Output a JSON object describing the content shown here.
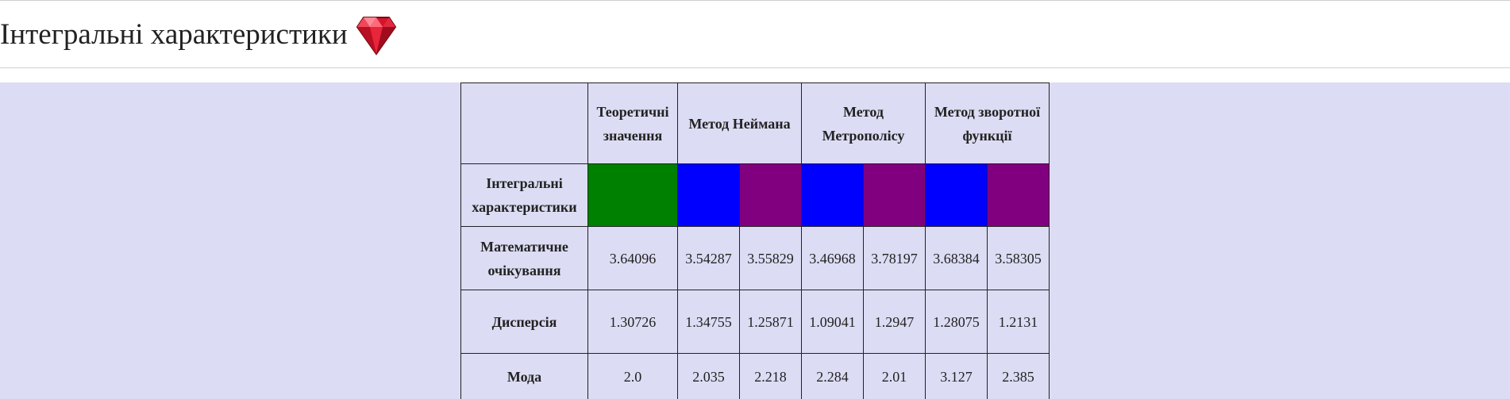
{
  "page": {
    "title": "Інтегральні характеристики",
    "title_icon": "gem-icon"
  },
  "table": {
    "headers": {
      "corner": "",
      "theoretical": "Теоретичні значення",
      "neumann": "Метод Неймана",
      "metropolis": "Метод Метрополісу",
      "inverse": "Метод зворотної функції"
    },
    "color_row": {
      "label": "Інтегральні характеристики",
      "colors": [
        "#008000",
        "#0000ff",
        "#800080",
        "#0000ff",
        "#800080",
        "#0000ff",
        "#800080"
      ]
    },
    "rows": [
      {
        "label": "Математичне очікування",
        "values": [
          "3.64096",
          "3.54287",
          "3.55829",
          "3.46968",
          "3.78197",
          "3.68384",
          "3.58305"
        ]
      },
      {
        "label": "Дисперсія",
        "values": [
          "1.30726",
          "1.34755",
          "1.25871",
          "1.09041",
          "1.2947",
          "1.28075",
          "1.2131"
        ]
      },
      {
        "label": "Мода",
        "values": [
          "2.0",
          "2.035",
          "2.218",
          "2.284",
          "2.01",
          "3.127",
          "2.385"
        ]
      }
    ]
  },
  "colors": {
    "background": "#dcdcf4",
    "header_bg": "#ffffff",
    "border": "#222222"
  }
}
